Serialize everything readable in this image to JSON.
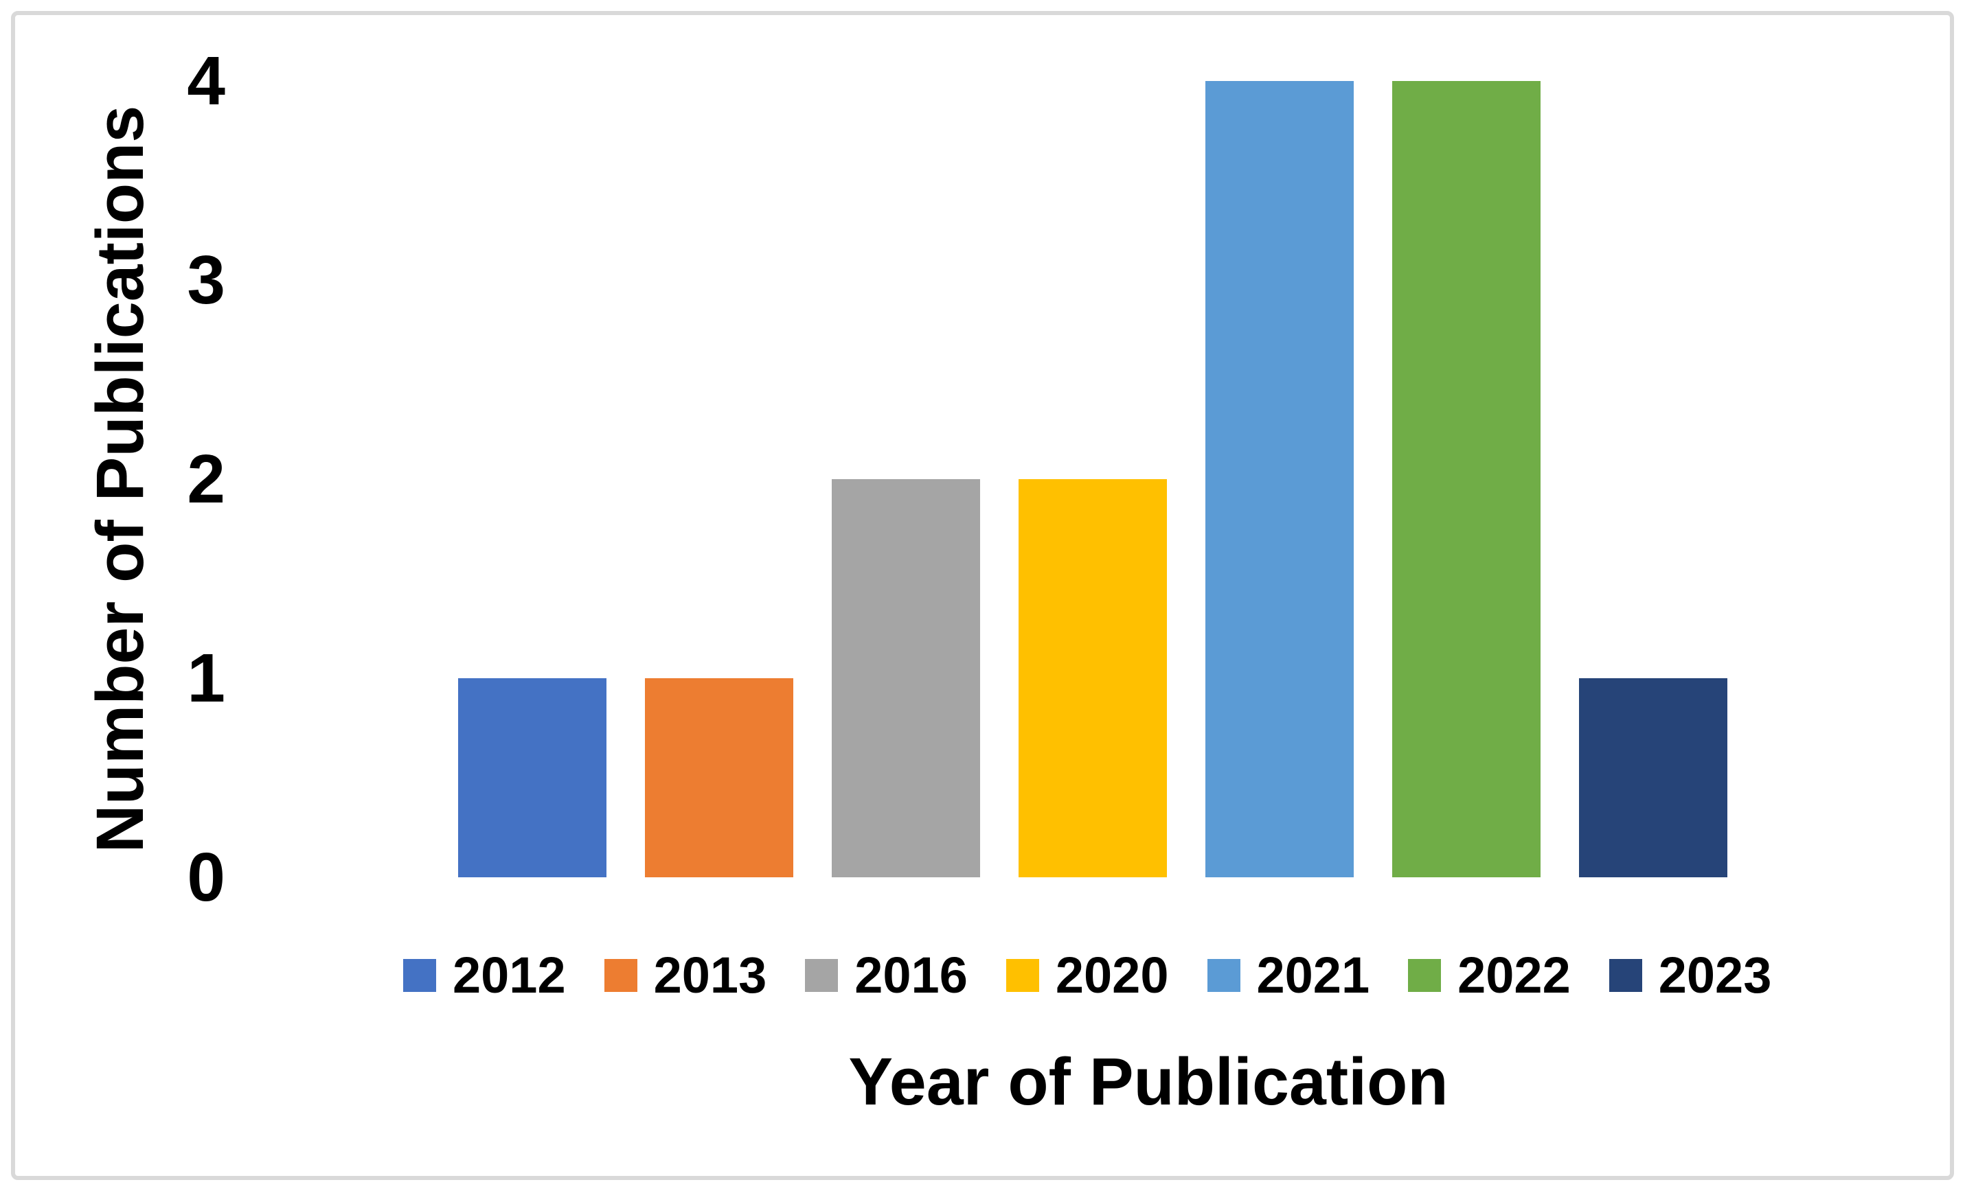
{
  "chart_data": {
    "type": "bar",
    "title": "",
    "xlabel": "Year of Publication",
    "ylabel": "Number of Publications",
    "categories": [
      "2012",
      "2013",
      "2016",
      "2020",
      "2021",
      "2022",
      "2023"
    ],
    "values": [
      1,
      1,
      2,
      2,
      4,
      4,
      1
    ],
    "colors": [
      "#4472C4",
      "#ED7D31",
      "#A5A5A5",
      "#FFC000",
      "#5B9BD5",
      "#70AD47",
      "#264478"
    ],
    "yticks": [
      0,
      1,
      2,
      3,
      4
    ],
    "ylim": [
      0,
      4
    ],
    "grid": false,
    "axis_lines": false,
    "legend_position": "bottom",
    "legend_entries": [
      "2012",
      "2013",
      "2016",
      "2020",
      "2021",
      "2022",
      "2023"
    ],
    "frame_border_color": "#D9D9D9",
    "text_color": "#000000",
    "background_color": "#FFFFFF"
  }
}
